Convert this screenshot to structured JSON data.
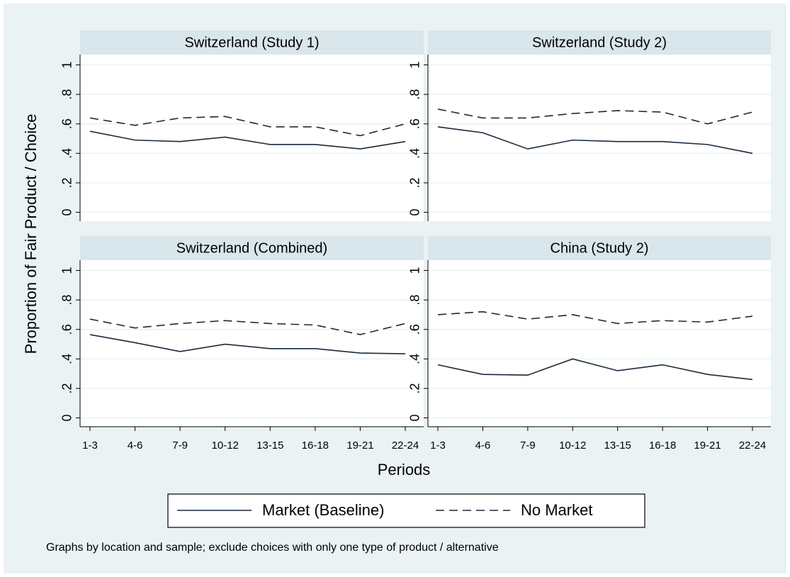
{
  "y_label": "Proportion of Fair Product / Choice",
  "x_label": "Periods",
  "note": "Graphs by location and sample; exclude choices with only one type of product / alternative",
  "chart_data": [
    {
      "type": "line",
      "title": "Switzerland (Study 1)",
      "categories": [
        "1-3",
        "4-6",
        "7-9",
        "10-12",
        "13-15",
        "16-18",
        "19-21",
        "22-24"
      ],
      "series": [
        {
          "name": "Market (Baseline)",
          "color": "#1a2a3c",
          "dash": "solid",
          "values": [
            0.55,
            0.49,
            0.48,
            0.51,
            0.46,
            0.46,
            0.43,
            0.48
          ]
        },
        {
          "name": "No Market",
          "color": "#1a2a3c",
          "dash": "dashed",
          "values": [
            0.64,
            0.59,
            0.64,
            0.65,
            0.58,
            0.58,
            0.52,
            0.6
          ]
        }
      ],
      "ylim": [
        -0.06,
        1.07
      ],
      "yticks": [
        0,
        {
          "value": 0.2,
          "label": ".2"
        },
        {
          "value": 0.4,
          "label": ".4"
        },
        {
          "value": 0.6,
          "label": ".6"
        },
        {
          "value": 0.8,
          "label": ".8"
        },
        1
      ],
      "grid": true
    },
    {
      "type": "line",
      "title": "Switzerland (Study 2)",
      "categories": [
        "1-3",
        "4-6",
        "7-9",
        "10-12",
        "13-15",
        "16-18",
        "19-21",
        "22-24"
      ],
      "series": [
        {
          "name": "Market (Baseline)",
          "color": "#1a2a3c",
          "dash": "solid",
          "values": [
            0.58,
            0.54,
            0.43,
            0.49,
            0.48,
            0.48,
            0.46,
            0.4
          ]
        },
        {
          "name": "No Market",
          "color": "#1a2a3c",
          "dash": "dashed",
          "values": [
            0.7,
            0.64,
            0.64,
            0.67,
            0.69,
            0.68,
            0.6,
            0.68
          ]
        }
      ],
      "ylim": [
        -0.06,
        1.07
      ],
      "yticks": [
        0,
        {
          "value": 0.2,
          "label": ".2"
        },
        {
          "value": 0.4,
          "label": ".4"
        },
        {
          "value": 0.6,
          "label": ".6"
        },
        {
          "value": 0.8,
          "label": ".8"
        },
        1
      ],
      "grid": true
    },
    {
      "type": "line",
      "title": "Switzerland (Combined)",
      "categories": [
        "1-3",
        "4-6",
        "7-9",
        "10-12",
        "13-15",
        "16-18",
        "19-21",
        "22-24"
      ],
      "series": [
        {
          "name": "Market (Baseline)",
          "color": "#1a2a3c",
          "dash": "solid",
          "values": [
            0.565,
            0.51,
            0.45,
            0.5,
            0.47,
            0.47,
            0.44,
            0.435
          ]
        },
        {
          "name": "No Market",
          "color": "#1a2a3c",
          "dash": "dashed",
          "values": [
            0.67,
            0.61,
            0.64,
            0.66,
            0.64,
            0.63,
            0.565,
            0.64
          ]
        }
      ],
      "ylim": [
        -0.06,
        1.07
      ],
      "yticks": [
        0,
        {
          "value": 0.2,
          "label": ".2"
        },
        {
          "value": 0.4,
          "label": ".4"
        },
        {
          "value": 0.6,
          "label": ".6"
        },
        {
          "value": 0.8,
          "label": ".8"
        },
        1
      ],
      "grid": true
    },
    {
      "type": "line",
      "title": "China (Study 2)",
      "categories": [
        "1-3",
        "4-6",
        "7-9",
        "10-12",
        "13-15",
        "16-18",
        "19-21",
        "22-24"
      ],
      "series": [
        {
          "name": "Market (Baseline)",
          "color": "#1a2a3c",
          "dash": "solid",
          "values": [
            0.36,
            0.295,
            0.29,
            0.4,
            0.32,
            0.36,
            0.295,
            0.26
          ]
        },
        {
          "name": "No Market",
          "color": "#1a2a3c",
          "dash": "dashed",
          "values": [
            0.7,
            0.72,
            0.67,
            0.7,
            0.64,
            0.66,
            0.65,
            0.69
          ]
        }
      ],
      "ylim": [
        -0.06,
        1.07
      ],
      "yticks": [
        0,
        {
          "value": 0.2,
          "label": ".2"
        },
        {
          "value": 0.4,
          "label": ".4"
        },
        {
          "value": 0.6,
          "label": ".6"
        },
        {
          "value": 0.8,
          "label": ".8"
        },
        1
      ],
      "grid": true
    }
  ]
}
